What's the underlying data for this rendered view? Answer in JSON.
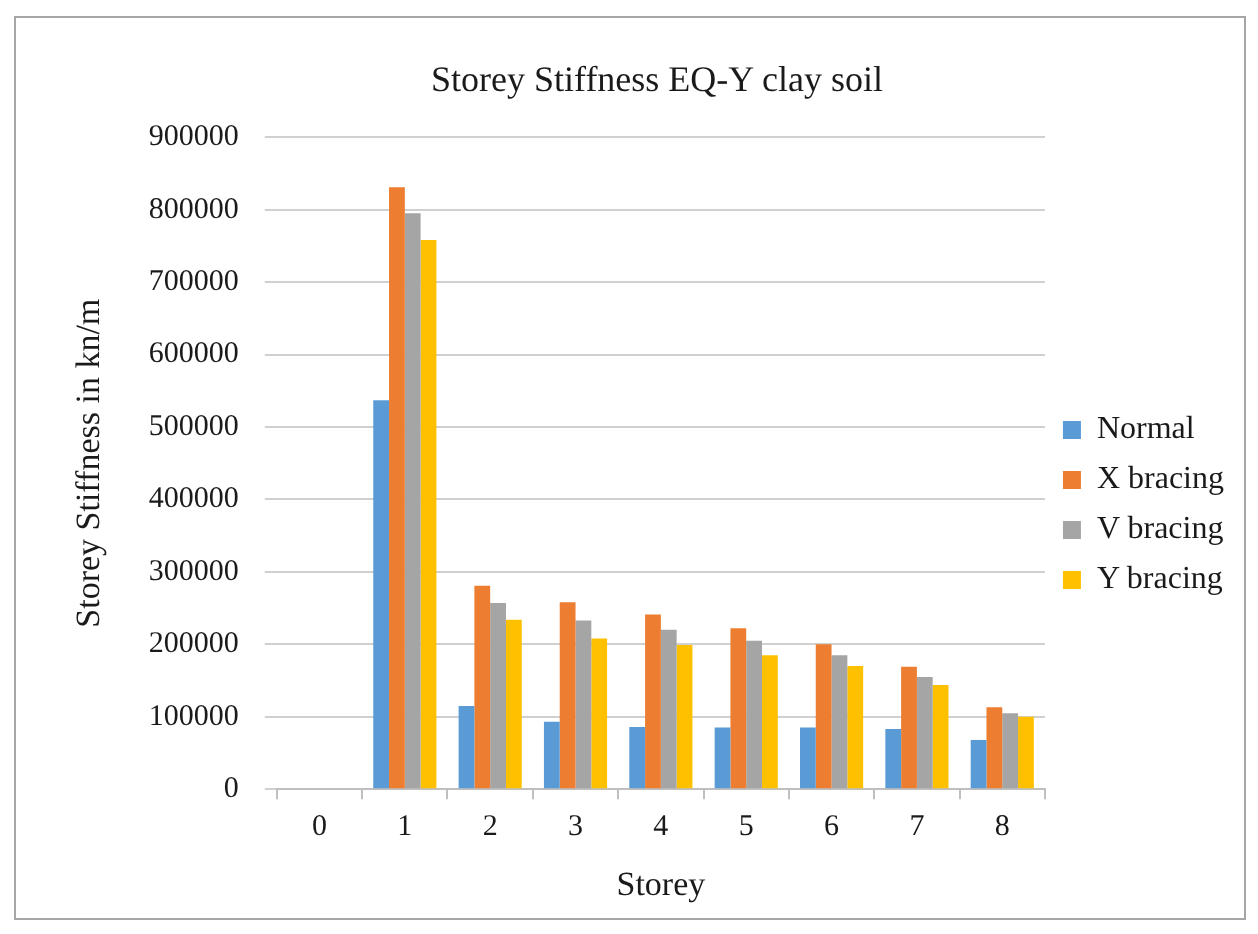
{
  "chart_data": {
    "type": "bar",
    "title": "Storey Stiffness EQ-Y clay soil",
    "xlabel": "Storey",
    "ylabel": "Storey Stiffness in kn/m",
    "categories": [
      "0",
      "1",
      "2",
      "3",
      "4",
      "5",
      "6",
      "7",
      "8"
    ],
    "series": [
      {
        "name": "Normal",
        "color": "#5b9bd5",
        "values": [
          null,
          537000,
          115000,
          93000,
          86000,
          85000,
          85000,
          83000,
          68000
        ]
      },
      {
        "name": "X bracing",
        "color": "#ed7d31",
        "values": [
          null,
          831000,
          281000,
          258000,
          241000,
          222000,
          200000,
          169000,
          113000
        ]
      },
      {
        "name": "V bracing",
        "color": "#a5a5a5",
        "values": [
          null,
          795000,
          257000,
          233000,
          220000,
          205000,
          185000,
          155000,
          105000
        ]
      },
      {
        "name": "Y bracing",
        "color": "#ffc000",
        "values": [
          null,
          758000,
          234000,
          208000,
          199000,
          185000,
          170000,
          144000,
          100000
        ]
      }
    ],
    "ylim": [
      0,
      900000
    ],
    "yticks": [
      0,
      100000,
      200000,
      300000,
      400000,
      500000,
      600000,
      700000,
      800000,
      900000
    ],
    "grid": "y",
    "legend": "right"
  }
}
